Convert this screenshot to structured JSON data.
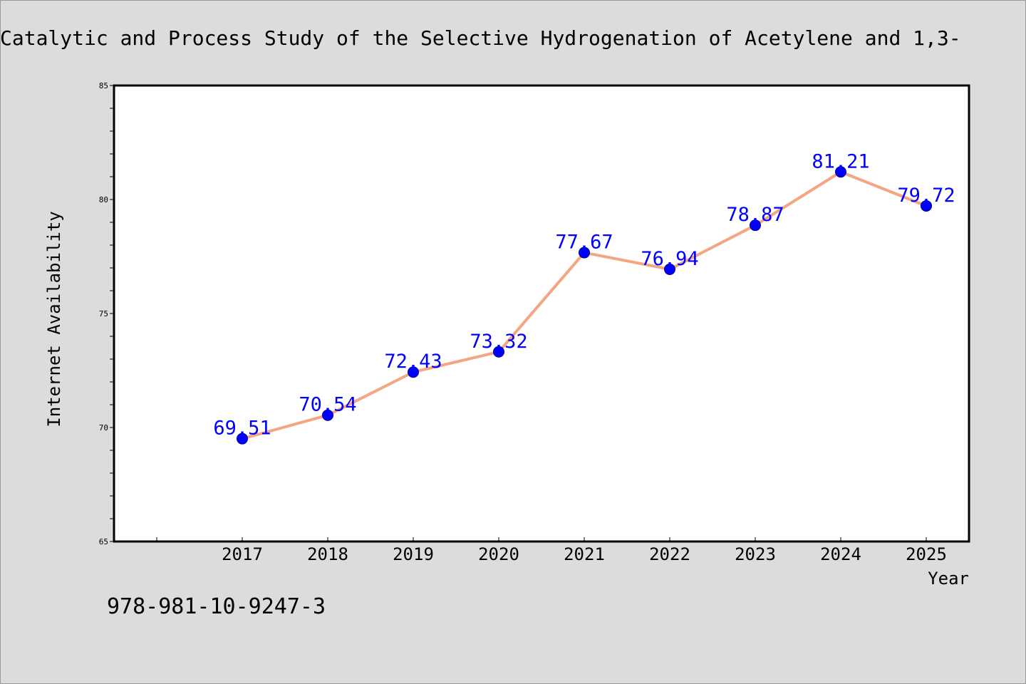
{
  "page": {
    "title": "Catalytic and Process Study of the Selective Hydrogenation of Acetylene and 1,3-",
    "footer_code": "978-981-10-9247-3"
  },
  "chart_data": {
    "type": "line",
    "xlabel": "Year",
    "ylabel": "Internet Availability",
    "categories": [
      "2017",
      "2018",
      "2019",
      "2020",
      "2021",
      "2022",
      "2023",
      "2024",
      "2025"
    ],
    "series": [
      {
        "values": [
          69.51,
          70.54,
          72.43,
          73.32,
          77.67,
          76.94,
          78.87,
          81.21,
          79.72
        ],
        "data_labels": [
          "69.51",
          "70.54",
          "72.43",
          "73.32",
          "77.67",
          "76.94",
          "78.87",
          "81.21",
          "79.72"
        ],
        "line_color": "#f4a582",
        "marker_color": "#0000ff",
        "label_color": "#0000ff"
      }
    ],
    "ylim": [
      65,
      85
    ],
    "yticks": [
      65,
      70,
      75,
      80,
      85
    ],
    "ytick_labels": [
      "65",
      "70",
      "75",
      "80",
      "85"
    ],
    "y_minor_step": 1,
    "x_extra_leading_tick": true,
    "grid": false,
    "legend": "none",
    "colors": {
      "background": "#dcdcdc",
      "plot_background": "#ffffff",
      "axes": "#000000",
      "text": "#000000"
    }
  }
}
